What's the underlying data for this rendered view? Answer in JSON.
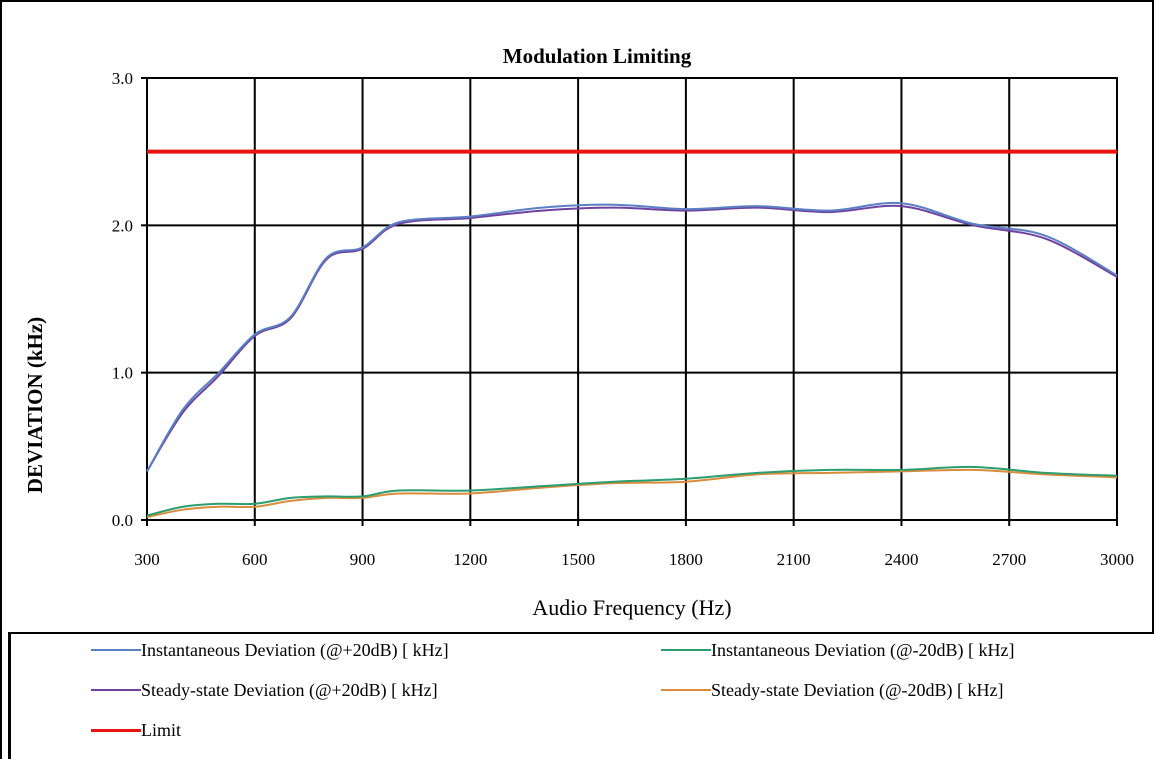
{
  "chart_data": {
    "type": "line",
    "title": "Modulation Limiting",
    "xlabel": "Audio Frequency (Hz)",
    "ylabel": "DEVIATION (kHz)",
    "xlim": [
      300,
      3000
    ],
    "ylim": [
      0,
      3
    ],
    "xticks": [
      "300",
      "600",
      "900",
      "1200",
      "1500",
      "1800",
      "2100",
      "2400",
      "2700",
      "3000"
    ],
    "yticks": [
      "0.0",
      "1.0",
      "2.0",
      "3.0"
    ],
    "grid": true,
    "legend_position": "bottom",
    "series": [
      {
        "name": "Instantaneous Deviation (@+20dB) [ kHz]",
        "color": "#5b7fc4",
        "x": [
          300,
          400,
          500,
          600,
          700,
          800,
          900,
          1000,
          1200,
          1400,
          1600,
          1800,
          2000,
          2200,
          2400,
          2600,
          2800,
          3000
        ],
        "y": [
          0.33,
          0.75,
          1.0,
          1.26,
          1.38,
          1.78,
          1.85,
          2.02,
          2.06,
          2.12,
          2.14,
          2.11,
          2.13,
          2.1,
          2.15,
          2.01,
          1.93,
          1.66
        ]
      },
      {
        "name": "Instantaneous Deviation (@-20dB) [ kHz]",
        "color": "#2a9e6e",
        "x": [
          300,
          400,
          500,
          600,
          700,
          800,
          900,
          1000,
          1200,
          1400,
          1600,
          1800,
          2000,
          2200,
          2400,
          2600,
          2800,
          3000
        ],
        "y": [
          0.03,
          0.09,
          0.11,
          0.11,
          0.15,
          0.16,
          0.16,
          0.2,
          0.2,
          0.23,
          0.26,
          0.28,
          0.32,
          0.34,
          0.34,
          0.36,
          0.32,
          0.3
        ]
      },
      {
        "name": "Steady-state Deviation (@+20dB) [ kHz]",
        "color": "#6f42a0",
        "x": [
          300,
          400,
          500,
          600,
          700,
          800,
          900,
          1000,
          1200,
          1400,
          1600,
          1800,
          2000,
          2200,
          2400,
          2600,
          2800,
          3000
        ],
        "y": [
          0.33,
          0.73,
          0.98,
          1.25,
          1.37,
          1.77,
          1.84,
          2.01,
          2.05,
          2.1,
          2.12,
          2.1,
          2.12,
          2.09,
          2.13,
          2.0,
          1.91,
          1.65
        ]
      },
      {
        "name": "Steady-state Deviation (@-20dB) [ kHz]",
        "color": "#d98c3c",
        "x": [
          300,
          400,
          500,
          600,
          700,
          800,
          900,
          1000,
          1200,
          1400,
          1600,
          1800,
          2000,
          2200,
          2400,
          2600,
          2800,
          3000
        ],
        "y": [
          0.02,
          0.07,
          0.09,
          0.09,
          0.13,
          0.15,
          0.15,
          0.18,
          0.18,
          0.22,
          0.25,
          0.26,
          0.31,
          0.32,
          0.33,
          0.34,
          0.31,
          0.29
        ]
      },
      {
        "name": "Limit",
        "color": "#e8140f",
        "x": [
          300,
          3000
        ],
        "y": [
          2.5,
          2.5
        ]
      }
    ]
  }
}
